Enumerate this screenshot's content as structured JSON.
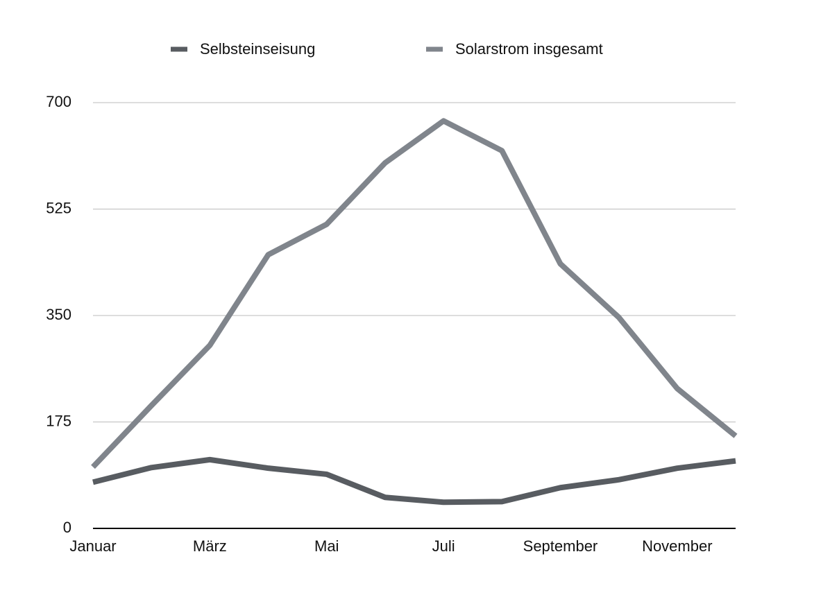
{
  "chart_data": {
    "type": "line",
    "categories": [
      "Januar",
      null,
      "März",
      null,
      "Mai",
      null,
      "Juli",
      null,
      "September",
      null,
      "November",
      null
    ],
    "series": [
      {
        "name": "Selbsteinseisung",
        "color": "#585c61",
        "values": [
          76,
          100,
          113,
          99,
          89,
          51,
          43,
          44,
          67,
          80,
          99,
          111
        ]
      },
      {
        "name": "Solarstrom insgesamt",
        "color": "#80858c",
        "values": [
          101,
          202,
          301,
          450,
          500,
          601,
          670,
          621,
          435,
          347,
          230,
          152
        ]
      }
    ],
    "ylim": [
      0,
      700
    ],
    "yticks": [
      0,
      175,
      350,
      525,
      700
    ],
    "grid": true,
    "legend": "top"
  }
}
